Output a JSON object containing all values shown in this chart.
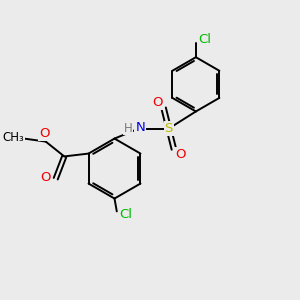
{
  "background_color": "#ebebeb",
  "bond_color": "#000000",
  "line_width": 1.4,
  "atom_colors": {
    "C": "#000000",
    "H": "#7a7a7a",
    "N": "#0000ee",
    "O": "#ee0000",
    "S": "#bbbb00",
    "Cl": "#00bb00"
  },
  "font_size": 9.5,
  "small_font_size": 8.5
}
